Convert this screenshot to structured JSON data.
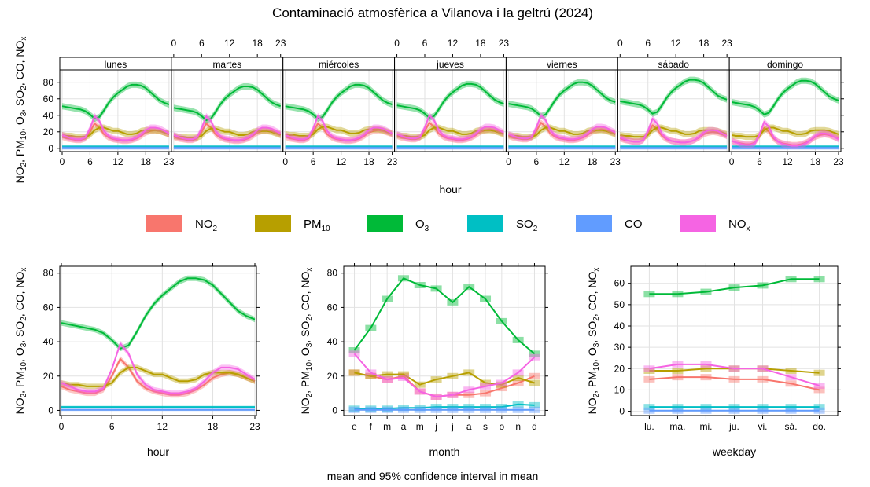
{
  "title": "Contaminació atmosfèrica a Vilanova i la geltrú (2024)",
  "footer": "mean and 95% confidence interval in mean",
  "ylabel_parts": [
    "NO",
    "2",
    ", PM",
    "10",
    ", O",
    "3",
    ", SO",
    "2",
    ", CO, NO",
    "x"
  ],
  "legend": [
    {
      "key": "no2",
      "base": "NO",
      "sub": "2",
      "color": "#F8766D"
    },
    {
      "key": "pm10",
      "base": "PM",
      "sub": "10",
      "color": "#B79F00"
    },
    {
      "key": "o3",
      "base": "O",
      "sub": "3",
      "color": "#00BA38"
    },
    {
      "key": "so2",
      "base": "SO",
      "sub": "2",
      "color": "#00BFC4"
    },
    {
      "key": "co",
      "base": "CO",
      "sub": "",
      "color": "#619CFF"
    },
    {
      "key": "nox",
      "base": "NO",
      "sub": "x",
      "color": "#F564E3"
    }
  ],
  "chart_data": [
    {
      "type": "line",
      "name": "hour-weekday",
      "xlabel": "hour",
      "ylabel": "NO2, PM10, O3, SO2, CO, NOx",
      "ylim": [
        -4,
        95
      ],
      "yticks": [
        0,
        20,
        40,
        60,
        80
      ],
      "xticks": [
        0,
        6,
        12,
        18,
        23
      ],
      "xlim": [
        0,
        23
      ],
      "grid": true,
      "panels": [
        "lunes",
        "martes",
        "miércoles",
        "jueves",
        "viernes",
        "sábado",
        "domingo"
      ],
      "weekday_offsets": {
        "no2": [
          0,
          0,
          0,
          1,
          1,
          -2,
          -5
        ],
        "pm10": [
          0,
          -1,
          1,
          0,
          0,
          0,
          0
        ],
        "o3": [
          0,
          -2,
          0,
          1,
          3,
          6,
          5
        ],
        "so2": [
          0,
          0,
          0,
          0,
          0,
          0,
          0
        ],
        "co": [
          0,
          0,
          0,
          0,
          0,
          0,
          0
        ],
        "nox": [
          0,
          0,
          0,
          1,
          1,
          -3,
          -7
        ]
      },
      "series": [
        {
          "key": "no2",
          "values": [
            14,
            12,
            11,
            10,
            10,
            12,
            20,
            30,
            25,
            17,
            13,
            11,
            10,
            9,
            9,
            10,
            12,
            15,
            19,
            21,
            22,
            21,
            19,
            17
          ]
        },
        {
          "key": "pm10",
          "values": [
            16,
            15,
            15,
            14,
            14,
            14,
            16,
            22,
            25,
            25,
            23,
            21,
            21,
            19,
            17,
            17,
            18,
            21,
            22,
            22,
            22,
            21,
            19,
            17
          ]
        },
        {
          "key": "o3",
          "values": [
            51,
            50,
            49,
            48,
            47,
            45,
            41,
            36,
            38,
            46,
            55,
            62,
            67,
            71,
            75,
            77,
            77,
            76,
            73,
            68,
            63,
            58,
            55,
            53
          ]
        },
        {
          "key": "so2",
          "values": [
            2,
            2,
            2,
            2,
            2,
            2,
            2,
            2,
            2,
            2,
            2,
            2,
            2,
            2,
            2,
            2,
            2,
            2,
            2,
            2,
            2,
            2,
            2,
            2
          ]
        },
        {
          "key": "co",
          "values": [
            0.3,
            0.3,
            0.3,
            0.3,
            0.3,
            0.3,
            0.3,
            0.3,
            0.3,
            0.3,
            0.3,
            0.3,
            0.3,
            0.3,
            0.3,
            0.3,
            0.3,
            0.3,
            0.3,
            0.3,
            0.3,
            0.3,
            0.3,
            0.3
          ]
        },
        {
          "key": "nox",
          "values": [
            16,
            14,
            12,
            11,
            11,
            13,
            24,
            39,
            33,
            21,
            15,
            12,
            11,
            10,
            10,
            11,
            13,
            17,
            22,
            25,
            25,
            24,
            21,
            18
          ]
        }
      ]
    },
    {
      "type": "line",
      "name": "hour",
      "xlabel": "hour",
      "ylabel": "NO2, PM10, O3, SO2, CO, NOx",
      "ylim": [
        -3,
        84
      ],
      "yticks": [
        0,
        20,
        40,
        60,
        80
      ],
      "xticks": [
        0,
        6,
        12,
        18,
        23
      ],
      "xlim": [
        0,
        23
      ],
      "grid": true,
      "series": [
        {
          "key": "no2",
          "values": [
            14,
            12,
            11,
            10,
            10,
            12,
            20,
            30,
            25,
            17,
            13,
            11,
            10,
            9,
            9,
            10,
            12,
            15,
            19,
            21,
            22,
            21,
            19,
            17
          ]
        },
        {
          "key": "pm10",
          "values": [
            16,
            15,
            15,
            14,
            14,
            14,
            16,
            22,
            25,
            25,
            23,
            21,
            21,
            19,
            17,
            17,
            18,
            21,
            22,
            22,
            22,
            21,
            19,
            17
          ]
        },
        {
          "key": "o3",
          "values": [
            51,
            50,
            49,
            48,
            47,
            45,
            41,
            36,
            38,
            46,
            55,
            62,
            67,
            71,
            75,
            77,
            77,
            76,
            73,
            68,
            63,
            58,
            55,
            53
          ]
        },
        {
          "key": "so2",
          "values": [
            2,
            2,
            2,
            2,
            2,
            2,
            2,
            2,
            2,
            2,
            2,
            2,
            2,
            2,
            2,
            2,
            2,
            2,
            2,
            2,
            2,
            2,
            2,
            2
          ]
        },
        {
          "key": "co",
          "values": [
            0.3,
            0.3,
            0.3,
            0.3,
            0.3,
            0.3,
            0.3,
            0.3,
            0.3,
            0.3,
            0.3,
            0.3,
            0.3,
            0.3,
            0.3,
            0.3,
            0.3,
            0.3,
            0.3,
            0.3,
            0.3,
            0.3,
            0.3,
            0.3
          ]
        },
        {
          "key": "nox",
          "values": [
            16,
            14,
            12,
            11,
            11,
            13,
            24,
            39,
            33,
            21,
            15,
            12,
            11,
            10,
            10,
            11,
            13,
            17,
            22,
            25,
            25,
            24,
            21,
            18
          ]
        }
      ]
    },
    {
      "type": "line",
      "name": "month",
      "xlabel": "month",
      "ylabel": "NO2, PM10, O3, SO2, CO, NOx",
      "ylim": [
        -3,
        84
      ],
      "yticks": [
        0,
        20,
        40,
        60,
        80
      ],
      "categories": [
        "e",
        "f",
        "m",
        "a",
        "m",
        "j",
        "j",
        "a",
        "s",
        "o",
        "n",
        "d"
      ],
      "grid": true,
      "series": [
        {
          "key": "no2",
          "values": [
            22,
            20,
            18,
            20,
            11,
            8,
            9,
            9,
            10,
            13,
            16,
            20
          ]
        },
        {
          "key": "pm10",
          "values": [
            22,
            20,
            21,
            21,
            15,
            18,
            20,
            22,
            16,
            15,
            19,
            16
          ]
        },
        {
          "key": "o3",
          "values": [
            35,
            48,
            65,
            77,
            73,
            71,
            63,
            72,
            65,
            52,
            41,
            33
          ]
        },
        {
          "key": "so2",
          "values": [
            1,
            1,
            1,
            1.5,
            1.5,
            2,
            2,
            2,
            2,
            2,
            3.5,
            3
          ]
        },
        {
          "key": "co",
          "values": [
            0.3,
            0.3,
            0.3,
            0.3,
            0.3,
            0.3,
            0.3,
            0.3,
            0.3,
            0.3,
            0.3,
            0.3
          ]
        },
        {
          "key": "nox",
          "values": [
            33,
            22,
            18,
            19,
            11,
            8,
            9,
            12,
            14,
            16,
            22,
            31
          ]
        }
      ]
    },
    {
      "type": "line",
      "name": "weekday",
      "xlabel": "weekday",
      "ylabel": "NO2, PM10, O3, SO2, CO, NOx",
      "ylim": [
        -2,
        68
      ],
      "yticks": [
        0,
        10,
        20,
        30,
        40,
        50,
        60
      ],
      "categories": [
        "lu.",
        "ma.",
        "mi.",
        "ju.",
        "vi.",
        "sá.",
        "do."
      ],
      "grid": true,
      "series": [
        {
          "key": "no2",
          "values": [
            15,
            16,
            16,
            15,
            15,
            13,
            10
          ]
        },
        {
          "key": "pm10",
          "values": [
            19,
            19,
            20,
            20,
            20,
            19,
            18
          ]
        },
        {
          "key": "o3",
          "values": [
            55,
            55,
            56,
            58,
            59,
            62,
            62
          ]
        },
        {
          "key": "so2",
          "values": [
            2,
            2,
            2,
            2,
            2,
            2,
            2
          ]
        },
        {
          "key": "co",
          "values": [
            0.3,
            0.3,
            0.3,
            0.3,
            0.3,
            0.3,
            0.3
          ]
        },
        {
          "key": "nox",
          "values": [
            20,
            22,
            22,
            20,
            20,
            16,
            12
          ]
        }
      ]
    }
  ]
}
